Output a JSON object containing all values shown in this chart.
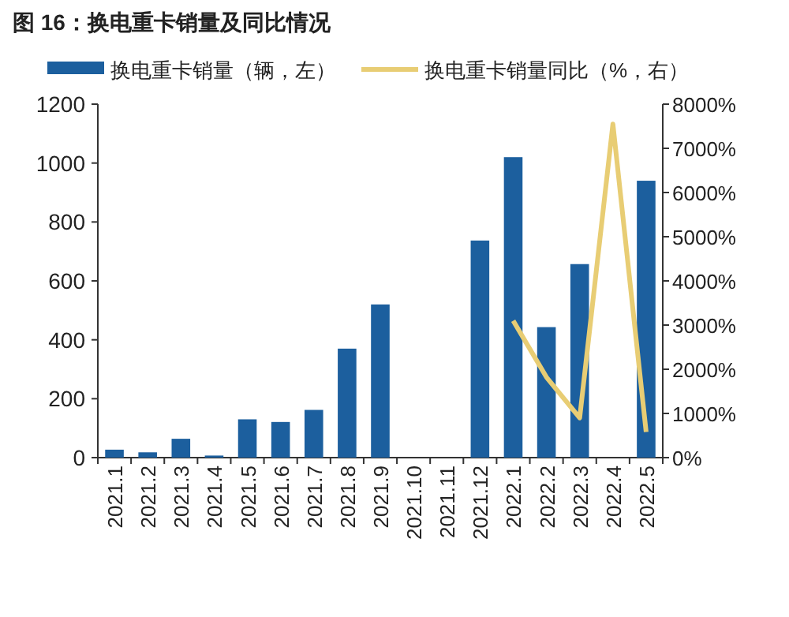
{
  "chart_data": {
    "type": "bar",
    "title": "图 16：换电重卡销量及同比情况",
    "categories": [
      "2021.1",
      "2021.2",
      "2021.3",
      "2021.4",
      "2021.5",
      "2021.6",
      "2021.7",
      "2021.8",
      "2021.9",
      "2021.10",
      "2021.11",
      "2021.12",
      "2022.1",
      "2022.2",
      "2022.3",
      "2022.4",
      "2022.5"
    ],
    "series": [
      {
        "name": "换电重卡销量（辆，左）",
        "color": "#1c5f9e",
        "values": [
          27,
          18,
          64,
          7,
          130,
          121,
          162,
          370,
          520,
          null,
          null,
          737,
          1020,
          443,
          657,
          null,
          940
        ]
      },
      {
        "name": "换电重卡销量同比（%，右）",
        "type": "line",
        "axis": "y2",
        "color": "#e8cd74",
        "values": [
          null,
          null,
          null,
          null,
          null,
          null,
          null,
          null,
          null,
          null,
          null,
          null,
          3100,
          1820,
          900,
          7550,
          580
        ]
      }
    ],
    "ylim": [
      0,
      1200
    ],
    "yticks": [
      0,
      200,
      400,
      600,
      800,
      1000,
      1200
    ],
    "y2lim": [
      0,
      8000
    ],
    "y2ticks": [
      {
        "value": 0,
        "label": "0%"
      },
      {
        "value": 1000,
        "label": "1000%"
      },
      {
        "value": 2000,
        "label": "2000%"
      },
      {
        "value": 3000,
        "label": "3000%"
      },
      {
        "value": 4000,
        "label": "4000%"
      },
      {
        "value": 5000,
        "label": "5000%"
      },
      {
        "value": 6000,
        "label": "6000%"
      },
      {
        "value": 7000,
        "label": "7000%"
      },
      {
        "value": 8000,
        "label": "8000%"
      }
    ],
    "legend": "top",
    "grid": false
  }
}
